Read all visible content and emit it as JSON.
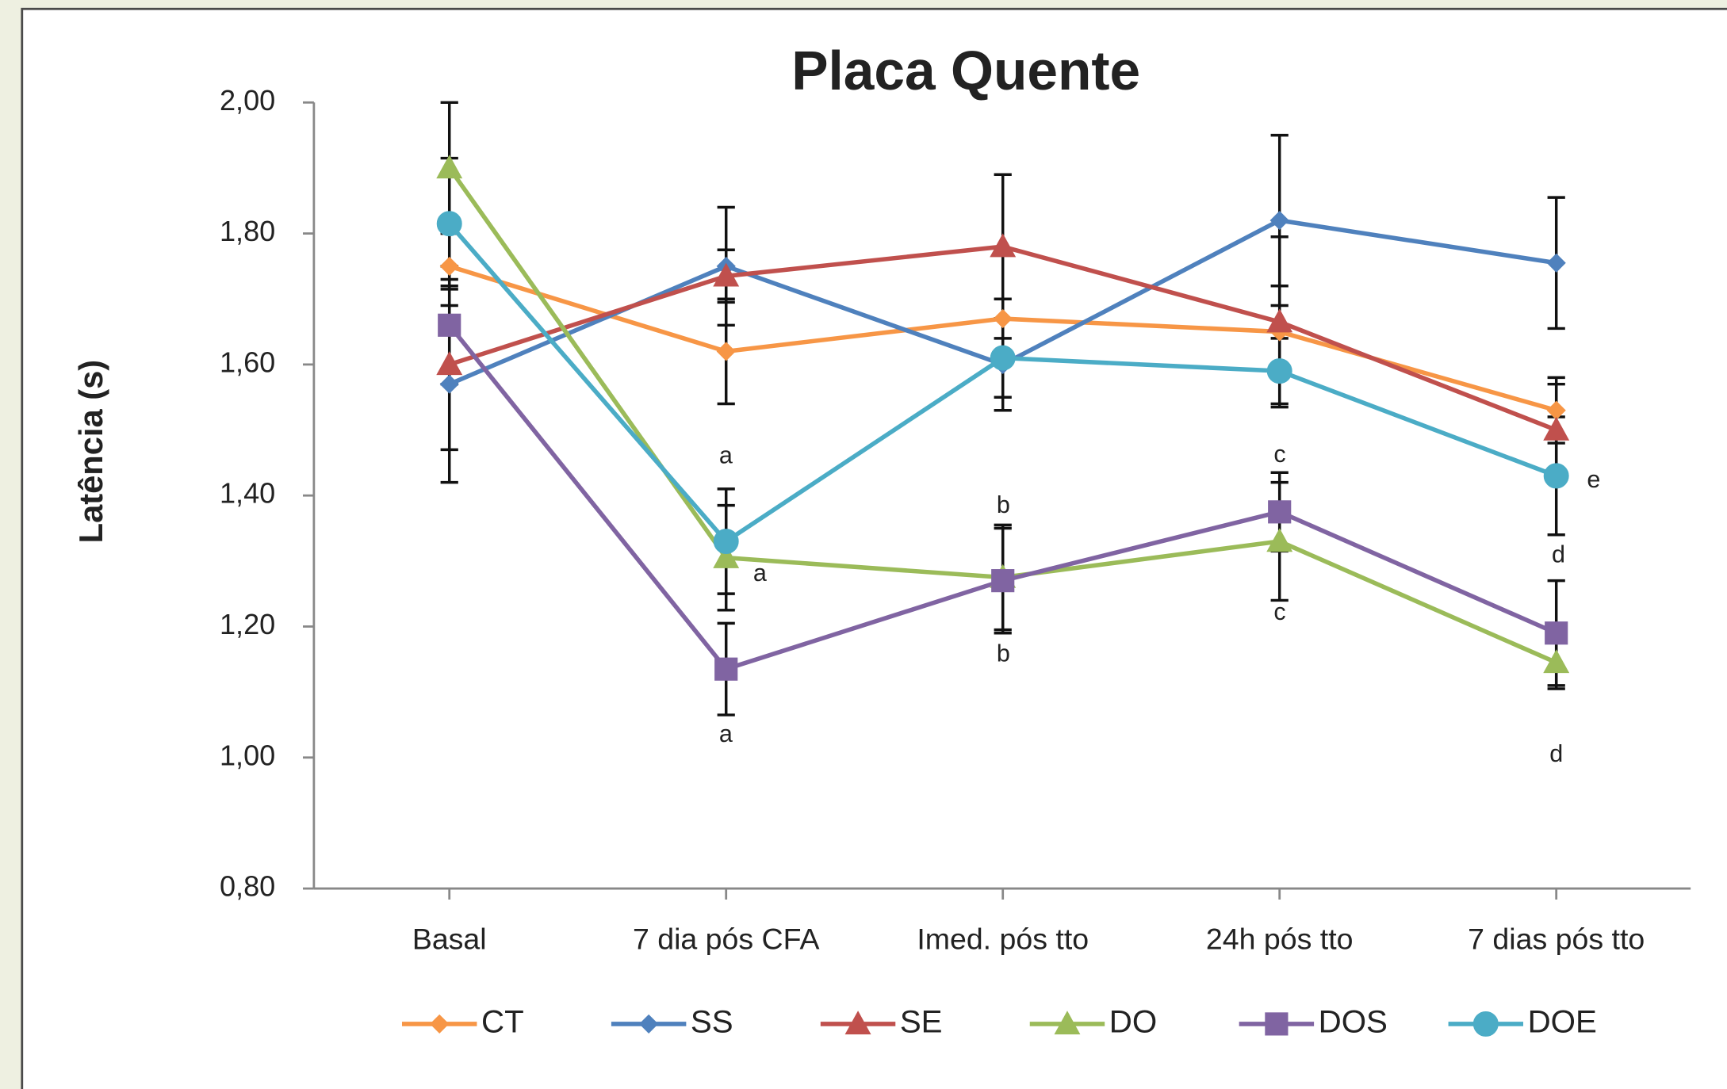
{
  "chart_data": {
    "type": "line",
    "title": "Placa Quente",
    "y_label": "Latência (s)",
    "categories": [
      "Basal",
      "7 dia pós CFA",
      "Imed. pós tto",
      "24h pós tto",
      "7 dias pós tto"
    ],
    "series": [
      {
        "name": "CT",
        "color": "#f79646",
        "marker": "diamond",
        "values": [
          1.75,
          1.62,
          1.67,
          1.65,
          1.53
        ],
        "errors": [
          0.06,
          0.08,
          0.03,
          0.07,
          0.05
        ]
      },
      {
        "name": "SS",
        "color": "#4f81bd",
        "marker": "diamond",
        "values": [
          1.57,
          1.75,
          1.6,
          1.82,
          1.755
        ],
        "errors": [
          0.15,
          0.09,
          0.07,
          0.13,
          0.1
        ]
      },
      {
        "name": "SE",
        "color": "#c0504d",
        "marker": "triangle",
        "values": [
          1.6,
          1.735,
          1.78,
          1.665,
          1.5
        ],
        "errors": [
          0.13,
          0.04,
          0.11,
          0.13,
          0.07
        ]
      },
      {
        "name": "DO",
        "color": "#9bbb59",
        "marker": "triangle",
        "values": [
          1.9,
          1.305,
          1.275,
          1.33,
          1.145
        ],
        "errors": [
          0.1,
          0.08,
          0.08,
          0.09,
          0.04
        ]
      },
      {
        "name": "DOS",
        "color": "#8064a2",
        "marker": "square",
        "values": [
          1.66,
          1.135,
          1.27,
          1.375,
          1.19
        ],
        "errors": [
          0.09,
          0.07,
          0.08,
          0.06,
          0.08
        ]
      },
      {
        "name": "DOE",
        "color": "#4bacc6",
        "marker": "circle",
        "values": [
          1.815,
          1.33,
          1.61,
          1.59,
          1.43
        ],
        "errors": [
          0.1,
          0.08,
          0.06,
          0.05,
          0.09
        ]
      }
    ],
    "annotations": [
      "a",
      "a",
      "a",
      "b",
      "b",
      "c",
      "c",
      "e",
      "d",
      "d"
    ],
    "ylim": [
      0.8,
      2.0
    ],
    "yticks": [
      {
        "value": 0.8,
        "label": "0,80"
      },
      {
        "value": 1.0,
        "label": "1,00"
      },
      {
        "value": 1.2,
        "label": "1,20"
      },
      {
        "value": 1.4,
        "label": "1,40"
      },
      {
        "value": 1.6,
        "label": "1,60"
      },
      {
        "value": 1.8,
        "label": "1,80"
      },
      {
        "value": 2.0,
        "label": "2,00"
      }
    ],
    "legend": "bottom",
    "grid": false
  }
}
